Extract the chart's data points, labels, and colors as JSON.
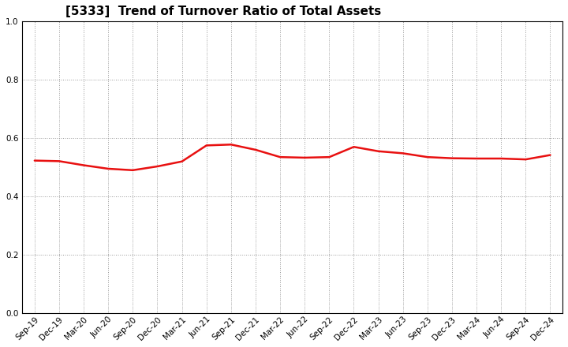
{
  "title": "[5333]  Trend of Turnover Ratio of Total Assets",
  "x_labels": [
    "Sep-19",
    "Dec-19",
    "Mar-20",
    "Jun-20",
    "Sep-20",
    "Dec-20",
    "Mar-21",
    "Jun-21",
    "Sep-21",
    "Dec-21",
    "Mar-22",
    "Jun-22",
    "Sep-22",
    "Dec-22",
    "Mar-23",
    "Jun-23",
    "Sep-23",
    "Dec-23",
    "Mar-24",
    "Jun-24",
    "Sep-24",
    "Dec-24"
  ],
  "y_values": [
    0.523,
    0.521,
    0.507,
    0.495,
    0.49,
    0.503,
    0.52,
    0.575,
    0.578,
    0.56,
    0.535,
    0.533,
    0.535,
    0.57,
    0.555,
    0.548,
    0.535,
    0.531,
    0.53,
    0.53,
    0.527,
    0.542
  ],
  "line_color": "#e81010",
  "line_width": 1.8,
  "ylim": [
    0.0,
    1.0
  ],
  "yticks": [
    0.0,
    0.2,
    0.4,
    0.6,
    0.8,
    1.0
  ],
  "background_color": "#ffffff",
  "plot_bg_color": "#ffffff",
  "grid_color": "#999999",
  "title_fontsize": 11,
  "tick_fontsize": 7.5
}
